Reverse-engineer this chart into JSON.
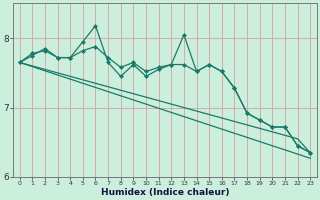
{
  "xlabel": "Humidex (Indice chaleur)",
  "background_color": "#cceedd",
  "grid_color": "#d4a0a8",
  "line_color": "#1a7a6a",
  "x_values": [
    0,
    1,
    2,
    3,
    4,
    5,
    6,
    7,
    8,
    9,
    10,
    11,
    12,
    13,
    14,
    15,
    16,
    17,
    18,
    19,
    20,
    21,
    22,
    23
  ],
  "line_spiky": [
    7.65,
    7.75,
    7.85,
    7.72,
    7.72,
    7.95,
    8.18,
    7.65,
    7.45,
    7.62,
    7.45,
    7.55,
    7.62,
    8.05,
    7.52,
    7.62,
    7.52,
    7.28,
    6.92,
    6.82,
    6.72,
    6.72,
    6.45,
    6.35
  ],
  "line_smooth": [
    7.65,
    7.78,
    7.82,
    7.72,
    7.72,
    7.82,
    7.88,
    7.72,
    7.58,
    7.65,
    7.52,
    7.58,
    7.62,
    7.62,
    7.52,
    7.62,
    7.52,
    7.28,
    6.92,
    6.82,
    6.72,
    6.72,
    6.45,
    6.35
  ],
  "line_trend1": [
    7.65,
    7.6,
    7.55,
    7.5,
    7.45,
    7.4,
    7.35,
    7.3,
    7.25,
    7.2,
    7.15,
    7.1,
    7.05,
    7.0,
    6.95,
    6.9,
    6.85,
    6.8,
    6.75,
    6.7,
    6.65,
    6.6,
    6.55,
    6.35
  ],
  "line_trend2": [
    7.65,
    7.59,
    7.53,
    7.47,
    7.41,
    7.35,
    7.29,
    7.23,
    7.17,
    7.11,
    7.05,
    6.99,
    6.93,
    6.87,
    6.81,
    6.75,
    6.69,
    6.63,
    6.57,
    6.51,
    6.45,
    6.39,
    6.33,
    6.27
  ],
  "ylim": [
    6.0,
    8.5
  ],
  "yticks": [
    6,
    7,
    8
  ],
  "xlim": [
    -0.5,
    23.5
  ]
}
